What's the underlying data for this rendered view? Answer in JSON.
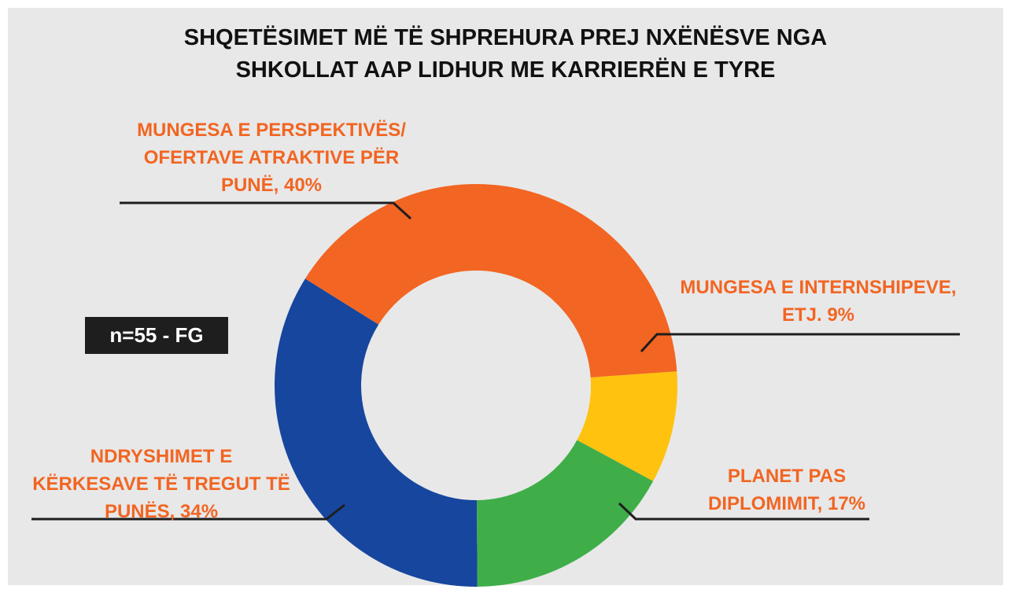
{
  "chart_data": {
    "type": "donut",
    "title": "SHQETËSIMET MË TË SHPREHURA PREJ NXËNËSVE NGA SHKOLLAT AAP LIDHUR ME KARRIERËN E TYRE",
    "categories": [
      "MUNGESA E PERSPEKTIVËS/ OFERTAVE ATRAKTIVE PËR PUNË, 40%",
      "MUNGESA E INTERNSHIPEVE, ETJ. 9%",
      "PLANET PAS DIPLOMIMIT, 17%",
      "NDRYSHIMET E KËRKESAVE TË TREGUT TË PUNËS, 34%"
    ],
    "values": [
      40,
      9,
      17,
      34
    ],
    "colors": [
      "#f26522",
      "#ffc20e",
      "#3fae49",
      "#17469e"
    ],
    "label_color": "#f26522",
    "annotation": "n=55 - FG"
  }
}
